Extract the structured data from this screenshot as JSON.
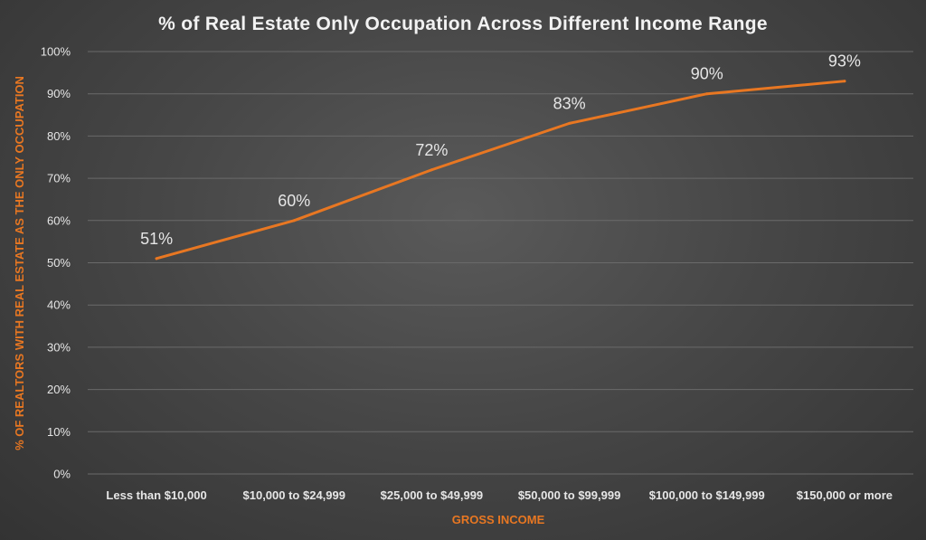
{
  "chart_data": {
    "type": "line",
    "title": "% of Real Estate Only Occupation Across Different Income Range",
    "xlabel": "GROSS INCOME",
    "ylabel": "% OF REALTORS WITH REAL ESTATE AS THE ONLY OCCUPATION",
    "categories": [
      "Less than $10,000",
      "$10,000 to $24,999",
      "$25,000 to $49,999",
      "$50,000 to $99,999",
      "$100,000 to $149,999",
      "$150,000 or more"
    ],
    "values": [
      51,
      60,
      72,
      83,
      90,
      93
    ],
    "data_labels": [
      "51%",
      "60%",
      "72%",
      "83%",
      "90%",
      "93%"
    ],
    "ylim": [
      0,
      100
    ],
    "y_ticks": [
      {
        "value": 0,
        "label": "0%"
      },
      {
        "value": 10,
        "label": "10%"
      },
      {
        "value": 20,
        "label": "20%"
      },
      {
        "value": 30,
        "label": "30%"
      },
      {
        "value": 40,
        "label": "40%"
      },
      {
        "value": 50,
        "label": "50%"
      },
      {
        "value": 60,
        "label": "60%"
      },
      {
        "value": 70,
        "label": "70%"
      },
      {
        "value": 80,
        "label": "80%"
      },
      {
        "value": 90,
        "label": "90%"
      },
      {
        "value": 100,
        "label": "100%"
      }
    ],
    "grid": true,
    "legend": "none",
    "colors": {
      "line": "#e87722",
      "axis_label": "#e87722",
      "text": "#e6e6e6",
      "gridline": "#6a6a6a"
    }
  }
}
